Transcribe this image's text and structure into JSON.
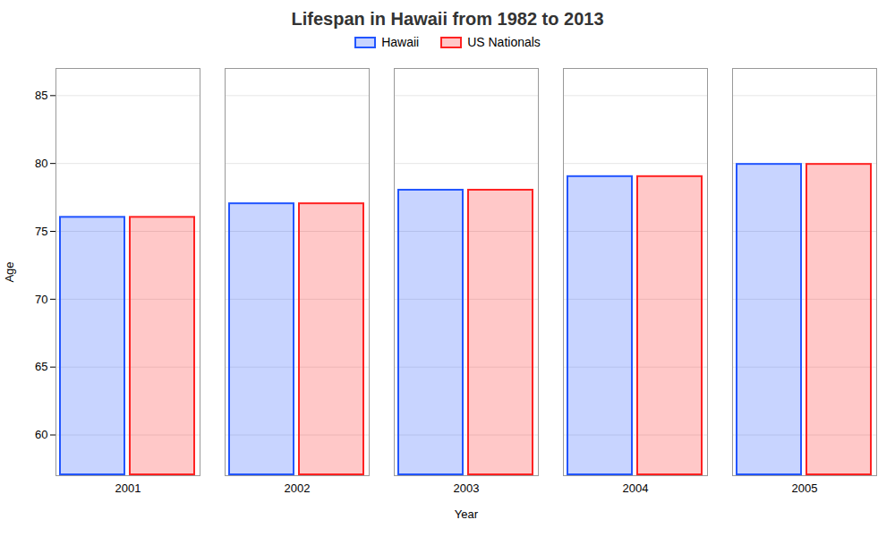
{
  "chart_data": {
    "type": "bar",
    "title": "Lifespan in Hawaii from 1982 to 2013",
    "xlabel": "Year",
    "ylabel": "Age",
    "categories": [
      "2001",
      "2002",
      "2003",
      "2004",
      "2005"
    ],
    "series": [
      {
        "name": "Hawaii",
        "color": "#2255ff",
        "values": [
          76.1,
          77.1,
          78.1,
          79.1,
          80.0
        ]
      },
      {
        "name": "US Nationals",
        "color": "#ff2222",
        "values": [
          76.1,
          77.1,
          78.1,
          79.1,
          80.0
        ]
      }
    ],
    "ylim": [
      57,
      87
    ],
    "yticks": [
      60,
      65,
      70,
      75,
      80,
      85
    ],
    "grid": true,
    "legend": "top"
  }
}
